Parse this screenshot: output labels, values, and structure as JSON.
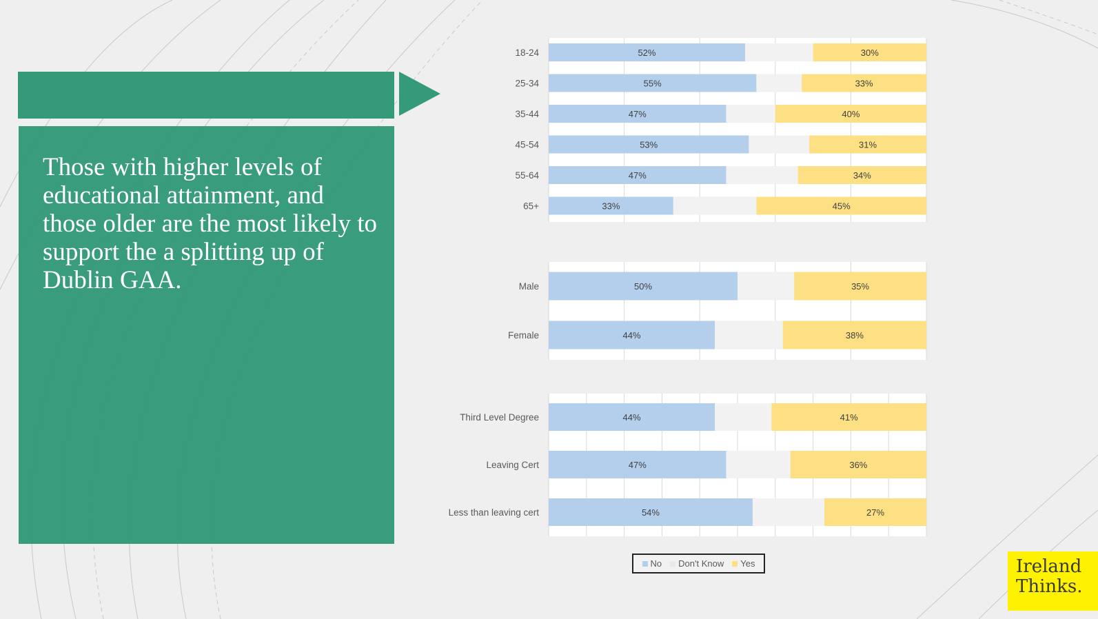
{
  "slide": {
    "text": "Those with higher levels of educational attainment, and those older are the most likely to support the a splitting up of Dublin GAA.",
    "logo_text": "Ireland Thinks."
  },
  "colors": {
    "panel": "#359a7a",
    "no": "#b4cfec",
    "dont_know": "#f2f2f2",
    "yes": "#fde083"
  },
  "legend": {
    "no": "No",
    "dont_know": "Don't Know",
    "yes": "Yes"
  },
  "chart_data": [
    {
      "type": "bar",
      "stacked": true,
      "orientation": "horizontal",
      "group": "age",
      "categories": [
        "18-24",
        "25-34",
        "35-44",
        "45-54",
        "55-64",
        "65+"
      ],
      "series": [
        {
          "name": "No",
          "values": [
            52,
            55,
            47,
            53,
            47,
            33
          ]
        },
        {
          "name": "Don't Know",
          "values": [
            18,
            12,
            13,
            16,
            19,
            22
          ]
        },
        {
          "name": "Yes",
          "values": [
            30,
            33,
            40,
            31,
            34,
            45
          ]
        }
      ],
      "xlim": [
        0,
        100
      ]
    },
    {
      "type": "bar",
      "stacked": true,
      "orientation": "horizontal",
      "group": "gender",
      "categories": [
        "Male",
        "Female"
      ],
      "series": [
        {
          "name": "No",
          "values": [
            50,
            44
          ]
        },
        {
          "name": "Don't Know",
          "values": [
            15,
            18
          ]
        },
        {
          "name": "Yes",
          "values": [
            35,
            38
          ]
        }
      ],
      "xlim": [
        0,
        100
      ]
    },
    {
      "type": "bar",
      "stacked": true,
      "orientation": "horizontal",
      "group": "education",
      "categories": [
        "Third Level Degree",
        "Leaving Cert",
        "Less than leaving cert"
      ],
      "series": [
        {
          "name": "No",
          "values": [
            44,
            47,
            54
          ]
        },
        {
          "name": "Don't Know",
          "values": [
            15,
            17,
            19
          ]
        },
        {
          "name": "Yes",
          "values": [
            41,
            36,
            27
          ]
        }
      ],
      "xlim": [
        0,
        100
      ]
    }
  ]
}
